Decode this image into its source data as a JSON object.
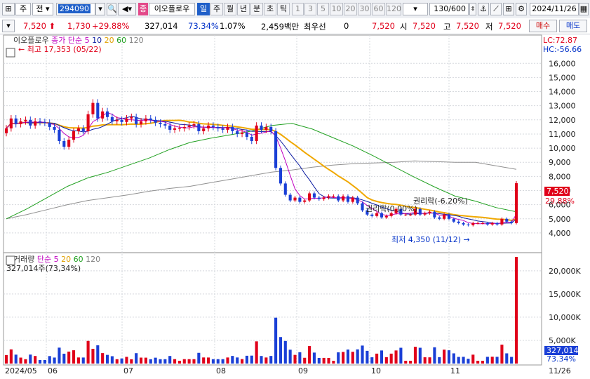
{
  "toolbar": {
    "market": "주",
    "type": "전",
    "code": "294090",
    "category_badge": "종",
    "stock_name": "이오플로우",
    "periods": [
      "일",
      "주",
      "월",
      "년",
      "분",
      "초",
      "틱"
    ],
    "active_period": "일",
    "numbers": [
      "1",
      "3",
      "5",
      "10",
      "20",
      "30",
      "60",
      "120"
    ],
    "count": "130/600",
    "date": "2024/11/26"
  },
  "quote": {
    "price": "7,520",
    "change": "1,730",
    "change_pct": "+29.88%",
    "volume": "327,014",
    "volume_ratio": "73.34%",
    "turnover": "1.07%",
    "amount": "2,459백만",
    "preferred_label": "최우선",
    "preferred_value": "0",
    "price2": "7,520",
    "open_label": "시",
    "open": "7,520",
    "high_label": "고",
    "high": "7,520",
    "low_label": "저",
    "low": "7,520",
    "buy_label": "매수",
    "sell_label": "매도"
  },
  "chart_data": [
    {
      "type": "candlestick",
      "legend": [
        "이오플로우",
        "종가 단순",
        "5",
        "10",
        "20",
        "60",
        "120"
      ],
      "colors": {
        "up": "#e0001a",
        "down": "#1a3fd6",
        "ma5": "#c000c0",
        "ma10": "#0a1aa0",
        "ma20": "#f0a800",
        "ma60": "#20a020",
        "ma120": "#909090"
      },
      "y_ticks": [
        4000,
        5000,
        6000,
        7000,
        8000,
        9000,
        10000,
        11000,
        12000,
        13000,
        14000,
        15000,
        16000
      ],
      "y_tick_labels": [
        "4,000",
        "5,000",
        "6,000",
        "7,000",
        "8,000",
        "9,000",
        "10,000",
        "11,000",
        "12,000",
        "13,000",
        "14,000",
        "15,000",
        "16,000"
      ],
      "ylim": [
        3300,
        17900
      ],
      "x_labels": [
        "2024/05",
        "06",
        "07",
        "08",
        "09",
        "10",
        "11",
        "11/26"
      ],
      "lc_label": "LC:72.87",
      "hc_label": "HC:-56.66",
      "current_price_label": "7,520",
      "current_change_label": "29.88%",
      "high_annotation": "최고 17,353 (05/22)",
      "low_annotation": "최저 4,350 (11/12)",
      "event1": "권리락(0.00%)",
      "event2": "권리락(-6.20%)",
      "close_series": [
        11400,
        12100,
        11700,
        11900,
        12000,
        11600,
        11900,
        11850,
        11800,
        11500,
        11300,
        10500,
        10100,
        10600,
        11200,
        11400,
        11200,
        12400,
        13200,
        12100,
        12600,
        12200,
        11900,
        12000,
        11850,
        12100,
        12200,
        11700,
        11900,
        12100,
        12000,
        11800,
        11700,
        11600,
        11300,
        11400,
        11400,
        11500,
        11600,
        11700,
        11200,
        11400,
        11600,
        11500,
        11400,
        11300,
        11500,
        11200,
        11000,
        11100,
        10800,
        10500,
        11600,
        11300,
        11500,
        11200,
        8600,
        7500,
        6700,
        6300,
        6500,
        6200,
        6300,
        6800,
        6500,
        6400,
        6500,
        6600,
        6600,
        6300,
        6600,
        6200,
        6500,
        6100,
        5600,
        5300,
        5200,
        5400,
        5100,
        5200,
        5400,
        5700,
        5300,
        5300,
        5300,
        5700,
        5300,
        5400,
        5500,
        5100,
        5000,
        5300,
        5000,
        4800,
        4700,
        4600,
        4550,
        4700,
        4700,
        4700,
        4600,
        4700,
        4600,
        5000,
        4800,
        4700,
        7520
      ],
      "ma120_series": [
        5000,
        5300,
        5650,
        6000,
        6300,
        6500,
        6700,
        6950,
        7150,
        7300,
        7550,
        7800,
        8050,
        8300,
        8450,
        8650,
        8800,
        8900,
        8950,
        9000,
        9100,
        9050,
        9000,
        9000,
        8750,
        8500
      ],
      "ma60_series": [
        5000,
        5700,
        6500,
        7300,
        7900,
        8300,
        8800,
        9300,
        9900,
        10400,
        10700,
        10950,
        11200,
        11600,
        11750,
        11350,
        10750,
        10150,
        9450,
        8700,
        7950,
        7250,
        6600,
        6250,
        5800,
        5500
      ],
      "volume": {
        "legend": [
          "거래량",
          "단순",
          "5",
          "20",
          "60",
          "120"
        ],
        "value_label": "327,014주(73,34%)",
        "y_ticks": [
          5000,
          10000,
          15000,
          20000
        ],
        "y_tick_labels": [
          "5,000K",
          "10,000K",
          "15,000K",
          "20,000K"
        ],
        "ylim": [
          0,
          23000
        ],
        "current_label": "327,014",
        "ratio_label": "73.34%"
      }
    }
  ]
}
